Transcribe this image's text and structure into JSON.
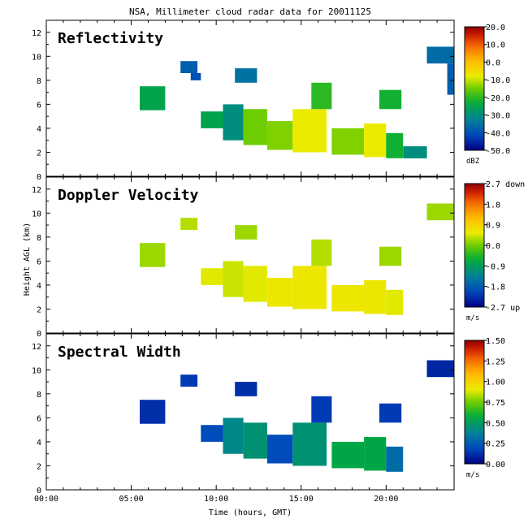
{
  "chart_data": {
    "type": "heatmap",
    "title": "NSA, Millimeter cloud radar data for 20011125",
    "xlabel": "Time (hours, GMT)",
    "ylabel": "Height AGL (km)",
    "xlim": [
      0,
      24
    ],
    "x_ticks": [
      "00:00",
      "05:00",
      "10:00",
      "15:00",
      "20:00"
    ],
    "ylim": [
      0,
      13
    ],
    "y_ticks": [
      "0",
      "2",
      "4",
      "6",
      "8",
      "10",
      "12"
    ],
    "panels": [
      {
        "name": "Reflectivity",
        "unit": "dBZ",
        "colorbar_ticks": [
          "20.0",
          "10.0",
          "0.0",
          "-10.0",
          "-20.0",
          "-30.0",
          "-40.0",
          "-50.0"
        ],
        "range": [
          -50,
          20
        ],
        "cells": [
          {
            "t0": 5.5,
            "t1": 7.0,
            "h0": 5.5,
            "h1": 7.5,
            "v": -25
          },
          {
            "t0": 7.9,
            "t1": 8.9,
            "h0": 8.6,
            "h1": 9.6,
            "v": -38
          },
          {
            "t0": 8.5,
            "t1": 9.1,
            "h0": 8.0,
            "h1": 8.6,
            "v": -40
          },
          {
            "t0": 11.1,
            "t1": 12.4,
            "h0": 7.8,
            "h1": 9.0,
            "v": -35
          },
          {
            "t0": 9.1,
            "t1": 10.4,
            "h0": 4.0,
            "h1": 5.4,
            "v": -25
          },
          {
            "t0": 10.4,
            "t1": 11.6,
            "h0": 3.0,
            "h1": 6.0,
            "v": -30
          },
          {
            "t0": 11.6,
            "t1": 13.0,
            "h0": 2.6,
            "h1": 5.6,
            "v": -15
          },
          {
            "t0": 13.0,
            "t1": 14.5,
            "h0": 2.2,
            "h1": 4.6,
            "v": -14
          },
          {
            "t0": 14.5,
            "t1": 16.5,
            "h0": 2.0,
            "h1": 5.6,
            "v": -8
          },
          {
            "t0": 15.6,
            "t1": 16.8,
            "h0": 5.6,
            "h1": 7.8,
            "v": -20
          },
          {
            "t0": 16.8,
            "t1": 18.7,
            "h0": 1.8,
            "h1": 4.0,
            "v": -14
          },
          {
            "t0": 18.7,
            "t1": 20.0,
            "h0": 1.6,
            "h1": 4.4,
            "v": -8
          },
          {
            "t0": 20.0,
            "t1": 21.0,
            "h0": 1.5,
            "h1": 3.6,
            "v": -22
          },
          {
            "t0": 19.6,
            "t1": 20.9,
            "h0": 5.6,
            "h1": 7.2,
            "v": -22
          },
          {
            "t0": 21.0,
            "t1": 22.4,
            "h0": 1.5,
            "h1": 2.5,
            "v": -30
          },
          {
            "t0": 22.4,
            "t1": 24.0,
            "h0": 9.4,
            "h1": 10.8,
            "v": -36
          },
          {
            "t0": 23.6,
            "t1": 24.0,
            "h0": 6.8,
            "h1": 9.4,
            "v": -38
          }
        ]
      },
      {
        "name": "Doppler Velocity",
        "unit": "m/s",
        "colorbar_ticks": [
          "2.7 down",
          "1.8",
          "0.9",
          "0.0",
          "-0.9",
          "-1.8",
          "-2.7 up"
        ],
        "range": [
          -2.7,
          2.7
        ],
        "cells": [
          {
            "t0": 5.5,
            "t1": 7.0,
            "h0": 5.5,
            "h1": 7.5,
            "v": 0.2
          },
          {
            "t0": 7.9,
            "t1": 8.9,
            "h0": 8.6,
            "h1": 9.6,
            "v": 0.3
          },
          {
            "t0": 11.1,
            "t1": 12.4,
            "h0": 7.8,
            "h1": 9.0,
            "v": 0.2
          },
          {
            "t0": 9.1,
            "t1": 10.4,
            "h0": 4.0,
            "h1": 5.4,
            "v": 0.5
          },
          {
            "t0": 10.4,
            "t1": 11.6,
            "h0": 3.0,
            "h1": 6.0,
            "v": 0.4
          },
          {
            "t0": 11.6,
            "t1": 13.0,
            "h0": 2.6,
            "h1": 5.6,
            "v": 0.5
          },
          {
            "t0": 13.0,
            "t1": 14.5,
            "h0": 2.2,
            "h1": 4.6,
            "v": 0.6
          },
          {
            "t0": 14.5,
            "t1": 16.5,
            "h0": 2.0,
            "h1": 5.6,
            "v": 0.6
          },
          {
            "t0": 15.6,
            "t1": 16.8,
            "h0": 5.6,
            "h1": 7.8,
            "v": 0.3
          },
          {
            "t0": 16.8,
            "t1": 18.7,
            "h0": 1.8,
            "h1": 4.0,
            "v": 0.6
          },
          {
            "t0": 18.7,
            "t1": 20.0,
            "h0": 1.6,
            "h1": 4.4,
            "v": 0.6
          },
          {
            "t0": 20.0,
            "t1": 21.0,
            "h0": 1.5,
            "h1": 3.6,
            "v": 0.5
          },
          {
            "t0": 19.6,
            "t1": 20.9,
            "h0": 5.6,
            "h1": 7.2,
            "v": 0.2
          },
          {
            "t0": 22.4,
            "t1": 24.0,
            "h0": 9.4,
            "h1": 10.8,
            "v": 0.2
          }
        ]
      },
      {
        "name": "Spectral Width",
        "unit": "m/s",
        "colorbar_ticks": [
          "1.50",
          "1.25",
          "1.00",
          "0.75",
          "0.50",
          "0.25",
          "0.00"
        ],
        "range": [
          0,
          1.5
        ],
        "cells": [
          {
            "t0": 5.5,
            "t1": 7.0,
            "h0": 5.5,
            "h1": 7.5,
            "v": 0.12
          },
          {
            "t0": 7.9,
            "t1": 8.9,
            "h0": 8.6,
            "h1": 9.6,
            "v": 0.15
          },
          {
            "t0": 11.1,
            "t1": 12.4,
            "h0": 7.8,
            "h1": 9.0,
            "v": 0.12
          },
          {
            "t0": 9.1,
            "t1": 10.4,
            "h0": 4.0,
            "h1": 5.4,
            "v": 0.2
          },
          {
            "t0": 10.4,
            "t1": 11.6,
            "h0": 3.0,
            "h1": 6.0,
            "v": 0.4
          },
          {
            "t0": 11.6,
            "t1": 13.0,
            "h0": 2.6,
            "h1": 5.6,
            "v": 0.45
          },
          {
            "t0": 13.0,
            "t1": 14.5,
            "h0": 2.2,
            "h1": 4.6,
            "v": 0.2
          },
          {
            "t0": 14.5,
            "t1": 16.5,
            "h0": 2.0,
            "h1": 5.6,
            "v": 0.45
          },
          {
            "t0": 15.6,
            "t1": 16.8,
            "h0": 5.6,
            "h1": 7.8,
            "v": 0.15
          },
          {
            "t0": 16.8,
            "t1": 18.7,
            "h0": 1.8,
            "h1": 4.0,
            "v": 0.55
          },
          {
            "t0": 18.7,
            "t1": 20.0,
            "h0": 1.6,
            "h1": 4.4,
            "v": 0.55
          },
          {
            "t0": 20.0,
            "t1": 21.0,
            "h0": 1.5,
            "h1": 3.6,
            "v": 0.3
          },
          {
            "t0": 19.6,
            "t1": 20.9,
            "h0": 5.6,
            "h1": 7.2,
            "v": 0.15
          },
          {
            "t0": 22.4,
            "t1": 24.0,
            "h0": 9.4,
            "h1": 10.8,
            "v": 0.1
          }
        ]
      }
    ]
  }
}
